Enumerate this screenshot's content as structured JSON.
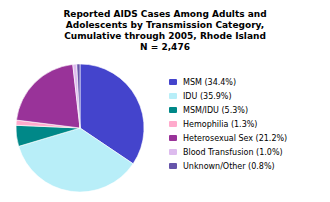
{
  "chart_data": {
    "type": "pie",
    "title": "Reported AIDS Cases Among Adults and\nAdolescents by Transmission Category,\nCumulative through 2005, Rhode Island\nN = 2,476",
    "categories": [
      "MSM (34.4%)",
      "IDU (35.9%)",
      "MSM/IDU (5.3%)",
      "Hemophilia (1.3%)",
      "Heterosexual Sex (21.2%)",
      "Blood Transfusion (1.0%)",
      "Unknown/Other (0.8%)"
    ],
    "values": [
      34.4,
      35.9,
      5.3,
      1.3,
      21.2,
      1.0,
      0.8
    ],
    "colors": [
      "#4444cc",
      "#b8eef8",
      "#008888",
      "#ffaacc",
      "#993399",
      "#ddbbee",
      "#6655aa"
    ],
    "legend": "right"
  }
}
